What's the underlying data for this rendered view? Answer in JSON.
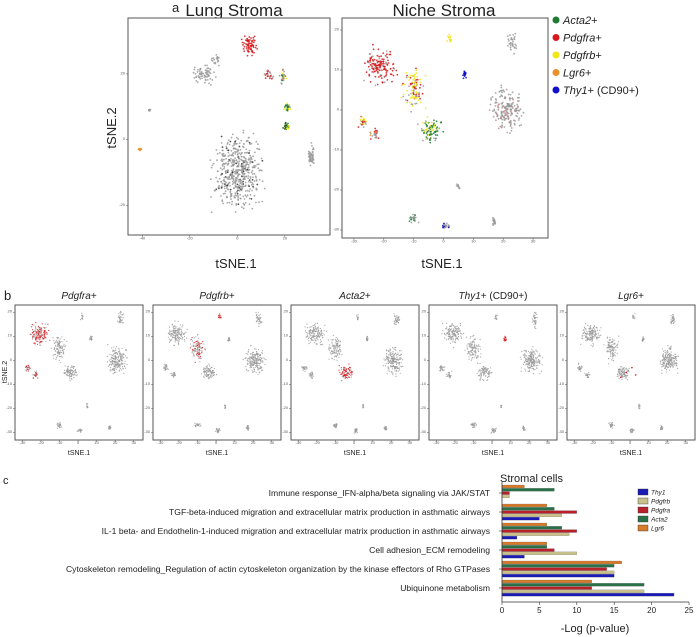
{
  "panel_letters": {
    "a": "a",
    "b": "b",
    "c": "c"
  },
  "chart_data": [
    {
      "type": "scatter",
      "panel": "a",
      "title": "Lung Stroma",
      "xlabel": "tSNE.1",
      "ylabel": "tSNE.2",
      "xticks": [
        -40,
        -20,
        0,
        20
      ],
      "yticks": [
        20,
        0,
        -20
      ],
      "xlim": [
        -46,
        39
      ],
      "ylim": [
        -29,
        37
      ]
    },
    {
      "type": "scatter",
      "panel": "a",
      "title": "Niche Stroma",
      "xlabel": "tSNE.1",
      "xticks": [
        -30,
        -20,
        -10,
        0,
        10,
        20,
        30
      ],
      "yticks": [
        20,
        10,
        0,
        -10,
        -20,
        -30
      ],
      "xlim": [
        -34,
        35
      ],
      "ylim": [
        -32,
        23
      ],
      "legend": {
        "placement": "right",
        "entries": [
          {
            "gene": "Acta2",
            "suffix": "+",
            "color": "#1e7b34"
          },
          {
            "gene": "Pdgfra",
            "suffix": "+",
            "color": "#d7191c"
          },
          {
            "gene": "Pdgfrb",
            "suffix": "+",
            "color": "#f2e614"
          },
          {
            "gene": "Lgr6",
            "suffix": "+",
            "color": "#e8912a"
          },
          {
            "gene": "Thy1",
            "suffix": "+ (CD90+)",
            "color": "#1010c8"
          }
        ]
      }
    },
    {
      "type": "scatter",
      "panel": "b",
      "xlabel": "tSNE.1",
      "ylabel": "tSNE.2",
      "xticks": [
        -30,
        -20,
        -10,
        0,
        10,
        20,
        30
      ],
      "yticks": [
        20,
        10,
        0,
        -10,
        -20,
        -30
      ],
      "highlight_color": "#d7191c",
      "background_color": "#9a9a9a",
      "panels": [
        {
          "gene": "Pdgfra",
          "suffix": "+"
        },
        {
          "gene": "Pdgfrb",
          "suffix": "+"
        },
        {
          "gene": "Acta2",
          "suffix": "+"
        },
        {
          "gene": "Thy1",
          "suffix": "+ (CD90+)"
        },
        {
          "gene": "Lgr6",
          "suffix": "+"
        }
      ]
    },
    {
      "type": "bar",
      "orientation": "horizontal",
      "panel": "c",
      "title": "Stromal cells",
      "xlabel": "-Log (p-value)",
      "xlim": [
        0,
        25
      ],
      "xticks": [
        0,
        5,
        10,
        15,
        20,
        25
      ],
      "legend": {
        "placement": "top-right"
      },
      "categories": [
        "Immune response_IFN-alpha/beta signaling via JAK/STAT",
        "TGF-beta-induced migration and extracellular matrix production in asthmatic airways",
        "IL-1 beta- and Endothelin-1-induced migration and extracellular matrix production in asthmatic airways",
        "Cell adhesion_ECM remodeling",
        "Cytoskeleton remodeling_Regulation of actin cytoskeleton organization by the kinase effectors of Rho GTPases",
        "Ubiquinone metabolism"
      ],
      "series": [
        {
          "name": "Thy1",
          "color": "#1a1ab4",
          "values": [
            0,
            5,
            2,
            3,
            15,
            23
          ]
        },
        {
          "name": "Pdgfrb",
          "color": "#c8c08a",
          "values": [
            1,
            8,
            9,
            10,
            15,
            19
          ]
        },
        {
          "name": "Pdgfra",
          "color": "#b8202a",
          "values": [
            1,
            10,
            10,
            7,
            14,
            12
          ]
        },
        {
          "name": "Acta2",
          "color": "#2a7048",
          "values": [
            7,
            7,
            8,
            6,
            15,
            19
          ]
        },
        {
          "name": "Lgr6",
          "color": "#d77a2a",
          "values": [
            3,
            6,
            6,
            6,
            16,
            12
          ]
        }
      ]
    }
  ]
}
